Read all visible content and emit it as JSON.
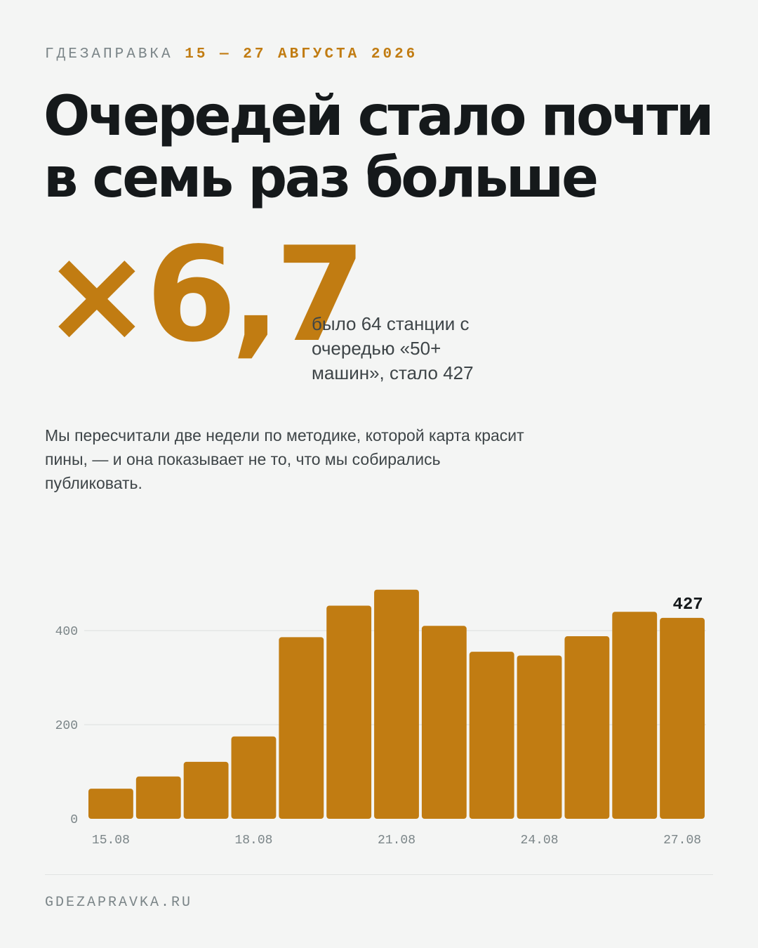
{
  "header": {
    "brand": "ГДЕЗАПРАВКА",
    "dates": "15 — 27 АВГУСТА 2026"
  },
  "headline": {
    "line1": "Очередей стало почти",
    "line2": "в семь раз больше"
  },
  "highlight": {
    "value": "×6,7",
    "note": "было 64 станции с очередью «50+ машин», стало 427"
  },
  "lede": "Мы пересчитали две недели по методике, которой карта красит пины, — и она показывает не то, что мы собирались публиковать.",
  "footer": {
    "site": "GDEZAPRAVKA.RU"
  },
  "colors": {
    "accent": "#c17c12",
    "ink": "#15191b",
    "muted": "#7b8588",
    "background": "#f4f5f4",
    "grid": "#e3e6e5"
  },
  "chart_data": {
    "type": "bar",
    "categories": [
      "15.08",
      "16.08",
      "17.08",
      "18.08",
      "19.08",
      "20.08",
      "21.08",
      "22.08",
      "23.08",
      "24.08",
      "25.08",
      "26.08",
      "27.08"
    ],
    "values": [
      64,
      90,
      121,
      175,
      386,
      453,
      487,
      410,
      355,
      347,
      388,
      440,
      427
    ],
    "x_tick_labels": [
      "15.08",
      "18.08",
      "21.08",
      "24.08",
      "27.08"
    ],
    "y_ticks": [
      "0",
      "200",
      "400"
    ],
    "ylim": [
      0,
      500
    ],
    "grid": true,
    "data_labels": [
      {
        "category": "27.08",
        "text": "427"
      }
    ],
    "title": "",
    "xlabel": "",
    "ylabel": ""
  }
}
